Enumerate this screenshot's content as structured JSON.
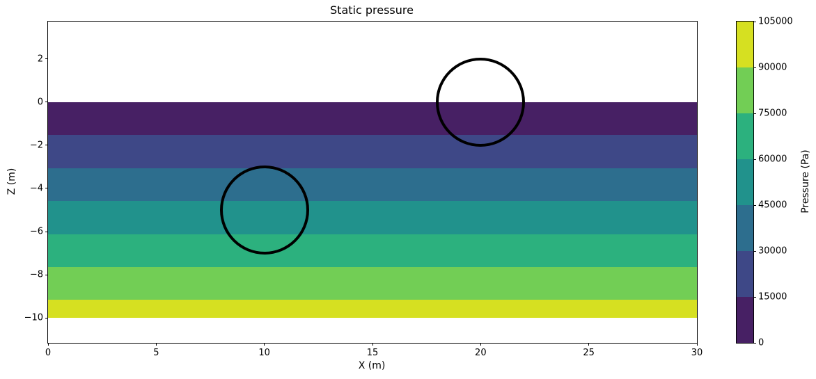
{
  "figure": {
    "title": "Static pressure",
    "x_axis_label": "X (m)",
    "y_axis_label": "Z (m)",
    "colorbar_label": "Pressure (Pa)"
  },
  "chart_data": {
    "type": "heatmap",
    "subtype": "filled-contour-bands",
    "title": "Static pressure",
    "xlabel": "X (m)",
    "ylabel": "Z (m)",
    "xlim": [
      0,
      30
    ],
    "ylim": [
      -11.16,
      3.74
    ],
    "x_ticks": [
      0,
      5,
      10,
      15,
      20,
      25,
      30
    ],
    "y_ticks": [
      2,
      0,
      -2,
      -4,
      -6,
      -8,
      -10
    ],
    "grid": false,
    "background_color": "#ffffff",
    "bands": [
      {
        "pressure_min": 0,
        "pressure_max": 15000,
        "z_top": 0.0,
        "z_bottom": -1.529,
        "color": "#472064"
      },
      {
        "pressure_min": 15000,
        "pressure_max": 30000,
        "z_top": -1.529,
        "z_bottom": -3.058,
        "color": "#3e4887"
      },
      {
        "pressure_min": 30000,
        "pressure_max": 45000,
        "z_top": -3.058,
        "z_bottom": -4.587,
        "color": "#2d6e8e"
      },
      {
        "pressure_min": 45000,
        "pressure_max": 60000,
        "z_top": -4.587,
        "z_bottom": -6.116,
        "color": "#21928c"
      },
      {
        "pressure_min": 60000,
        "pressure_max": 75000,
        "z_top": -6.116,
        "z_bottom": -7.645,
        "color": "#2cb17e"
      },
      {
        "pressure_min": 75000,
        "pressure_max": 90000,
        "z_top": -7.645,
        "z_bottom": -9.174,
        "color": "#72ce55"
      },
      {
        "pressure_min": 90000,
        "pressure_max": 105000,
        "z_top": -9.174,
        "z_bottom": -10.0,
        "color": "#d6e021"
      }
    ],
    "circles": [
      {
        "x": 10,
        "z": -5,
        "radius": 2,
        "stroke_color": "#000000"
      },
      {
        "x": 20,
        "z": 0,
        "radius": 2,
        "stroke_color": "#000000"
      }
    ],
    "colorbar": {
      "label": "Pressure (Pa)",
      "min": 0,
      "max": 105000,
      "ticks": [
        0,
        15000,
        30000,
        45000,
        60000,
        75000,
        90000,
        105000
      ],
      "segment_colors": [
        "#472064",
        "#3e4887",
        "#2d6e8e",
        "#21928c",
        "#2cb17e",
        "#72ce55",
        "#d6e021"
      ],
      "legend_position": "right"
    }
  }
}
